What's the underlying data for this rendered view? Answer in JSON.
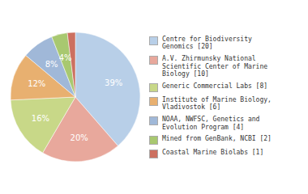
{
  "chart_data": {
    "type": "pie",
    "categories": [
      "Centre for Biodiversity\nGenomics [20]",
      "A.V. Zhirmunsky National\nScientific Center of Marine\nBiology [10]",
      "Generic Commercial Labs [8]",
      "Institute of Marine Biology,\nVladivostok [6]",
      "NOAA, NWFSC, Genetics and\nEvolution Program [4]",
      "Mined from GenBank, NCBI [2]",
      "Coastal Marine Biolabs [1]"
    ],
    "values": [
      39,
      20,
      16,
      12,
      8,
      4,
      2
    ],
    "value_labels": [
      "39%",
      "20%",
      "16%",
      "12%",
      "8%",
      "4%",
      null
    ],
    "colors": [
      "#b8cfe8",
      "#e8a89c",
      "#c8d888",
      "#e8b070",
      "#a0b8d8",
      "#a8c870",
      "#cc7060"
    ],
    "data_labels": true,
    "legend": "right"
  }
}
